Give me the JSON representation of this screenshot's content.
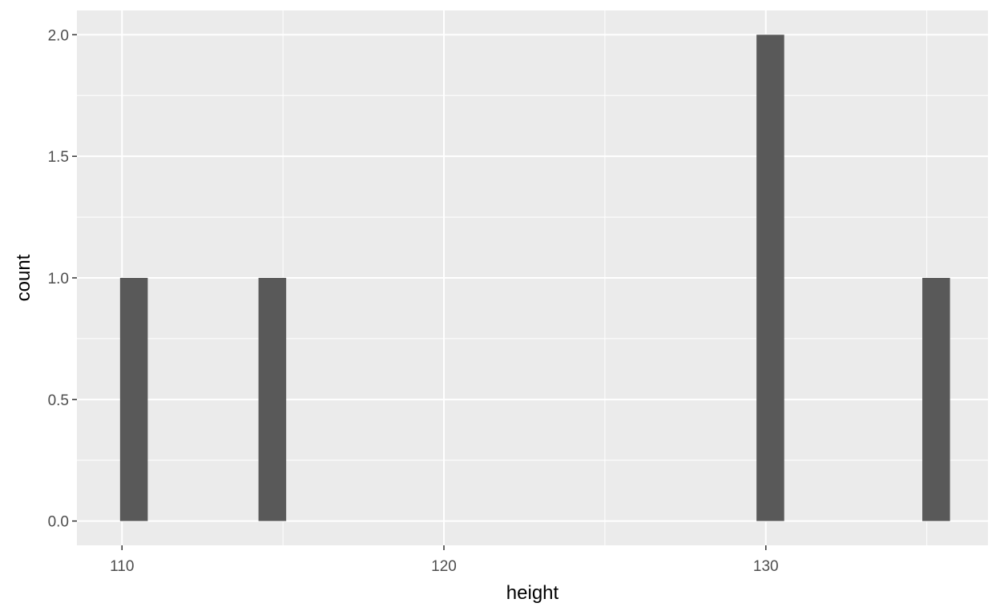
{
  "chart_data": {
    "type": "bar",
    "subtype": "histogram",
    "xlabel": "height",
    "ylabel": "count",
    "xlim": [
      108.6,
      136.9
    ],
    "ylim": [
      -0.1,
      2.1
    ],
    "x_ticks": [
      110,
      120,
      130
    ],
    "x_minor_ticks": [
      115,
      125,
      135
    ],
    "y_ticks": [
      0.0,
      0.5,
      1.0,
      1.5,
      2.0
    ],
    "y_tick_labels": [
      "0.0",
      "0.5",
      "1.0",
      "1.5",
      "2.0"
    ],
    "bin_width": 0.86,
    "bars": [
      {
        "x": 110.37,
        "count": 1
      },
      {
        "x": 114.67,
        "count": 1
      },
      {
        "x": 130.14,
        "count": 2
      },
      {
        "x": 135.29,
        "count": 1
      }
    ],
    "grid": true,
    "legend": "none",
    "colors": {
      "panel_background": "#ebebeb",
      "grid_line": "#ffffff",
      "bar_fill": "#595959",
      "tick_mark": "#333333",
      "tick_text": "#4d4d4d"
    }
  }
}
